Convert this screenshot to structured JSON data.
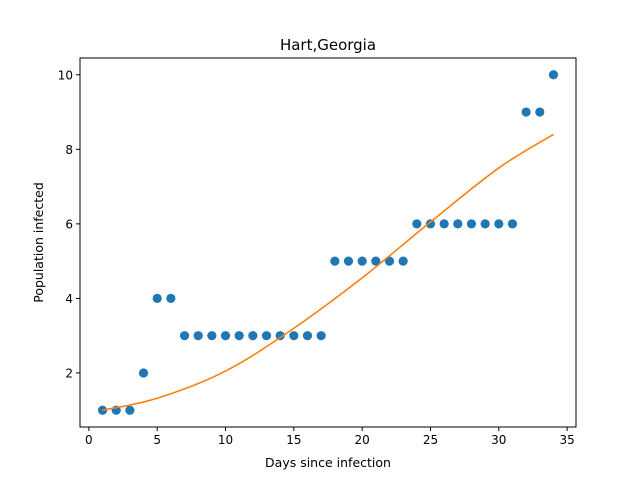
{
  "chart_data": {
    "type": "scatter",
    "title": "Hart,Georgia",
    "xlabel": "Days since infection",
    "ylabel": "Population infected",
    "xlim": [
      -0.65,
      35.65
    ],
    "ylim": [
      0.55,
      10.45
    ],
    "x_ticks": [
      0,
      5,
      10,
      15,
      20,
      25,
      30,
      35
    ],
    "y_ticks": [
      2,
      4,
      6,
      8,
      10
    ],
    "grid": false,
    "series": [
      {
        "type": "scatter",
        "color": "#1f77b4",
        "x": [
          1,
          2,
          3,
          4,
          5,
          6,
          7,
          8,
          9,
          10,
          11,
          12,
          13,
          14,
          15,
          16,
          17,
          18,
          19,
          20,
          21,
          22,
          23,
          24,
          25,
          26,
          27,
          28,
          29,
          30,
          31,
          32,
          33,
          34
        ],
        "y": [
          1,
          1,
          1,
          2,
          4,
          4,
          3,
          3,
          3,
          3,
          3,
          3,
          3,
          3,
          3,
          3,
          3,
          5,
          5,
          5,
          5,
          5,
          5,
          6,
          6,
          6,
          6,
          6,
          6,
          6,
          6,
          9,
          9,
          10
        ]
      },
      {
        "type": "line",
        "color": "#ff7f0e",
        "x": [
          1,
          5,
          10,
          15,
          20,
          25,
          30,
          34
        ],
        "y": [
          1.0,
          1.32,
          2.05,
          3.2,
          4.55,
          6.05,
          7.5,
          8.4
        ]
      }
    ]
  }
}
